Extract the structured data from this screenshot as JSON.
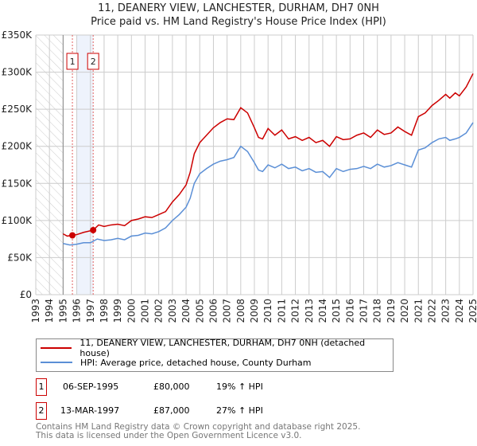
{
  "chart_data": {
    "type": "line",
    "title": "11, DEANERY VIEW, LANCHESTER, DURHAM, DH7 0NH",
    "subtitle": "Price paid vs. HM Land Registry's House Price Index (HPI)",
    "xlim": [
      1993,
      2025
    ],
    "ylim": [
      0,
      350000
    ],
    "x_ticks": [
      "1993",
      "1994",
      "1995",
      "1996",
      "1997",
      "1998",
      "1999",
      "2000",
      "2001",
      "2002",
      "2003",
      "2004",
      "2005",
      "2006",
      "2007",
      "2008",
      "2009",
      "2010",
      "2011",
      "2012",
      "2013",
      "2014",
      "2015",
      "2016",
      "2017",
      "2018",
      "2019",
      "2020",
      "2021",
      "2022",
      "2023",
      "2024",
      "2025"
    ],
    "y_ticks": [
      {
        "v": 0,
        "label": "£0"
      },
      {
        "v": 50000,
        "label": "£50K"
      },
      {
        "v": 100000,
        "label": "£100K"
      },
      {
        "v": 150000,
        "label": "£150K"
      },
      {
        "v": 200000,
        "label": "£200K"
      },
      {
        "v": 250000,
        "label": "£250K"
      },
      {
        "v": 300000,
        "label": "£300K"
      },
      {
        "v": 350000,
        "label": "£350K"
      }
    ],
    "grid": true,
    "hatched_range": [
      1993,
      1995
    ],
    "shaded_range": [
      1996,
      1997.2
    ],
    "series": [
      {
        "name": "11, DEANERY VIEW, LANCHESTER, DURHAM, DH7 0NH (detached house)",
        "color": "#cc0000",
        "x": [
          1995,
          1995.3,
          1995.68,
          1996,
          1996.5,
          1997.2,
          1997.6,
          1998,
          1998.5,
          1999,
          1999.5,
          2000,
          2000.5,
          2001,
          2001.5,
          2002,
          2002.5,
          2003,
          2003.5,
          2004,
          2004.3,
          2004.6,
          2005,
          2005.5,
          2006,
          2006.5,
          2007,
          2007.5,
          2008,
          2008.5,
          2009,
          2009.3,
          2009.6,
          2010,
          2010.5,
          2011,
          2011.5,
          2012,
          2012.5,
          2013,
          2013.5,
          2014,
          2014.5,
          2015,
          2015.5,
          2016,
          2016.5,
          2017,
          2017.5,
          2018,
          2018.5,
          2019,
          2019.5,
          2020,
          2020.5,
          2021,
          2021.5,
          2022,
          2022.5,
          2023,
          2023.3,
          2023.7,
          2024,
          2024.5,
          2025
        ],
        "y": [
          82000,
          79000,
          80000,
          81000,
          84000,
          87000,
          94000,
          92000,
          94000,
          95000,
          93000,
          100000,
          102000,
          105000,
          104000,
          108000,
          112000,
          125000,
          135000,
          148000,
          165000,
          190000,
          205000,
          215000,
          225000,
          232000,
          237000,
          236000,
          252000,
          245000,
          225000,
          212000,
          210000,
          224000,
          215000,
          222000,
          210000,
          213000,
          208000,
          212000,
          205000,
          208000,
          200000,
          213000,
          209000,
          210000,
          215000,
          218000,
          212000,
          222000,
          216000,
          218000,
          226000,
          220000,
          215000,
          240000,
          245000,
          255000,
          262000,
          270000,
          265000,
          272000,
          268000,
          280000,
          298000
        ]
      },
      {
        "name": "HPI: Average price, detached house, County Durham",
        "color": "#5b8fd6",
        "x": [
          1995,
          1995.5,
          1996,
          1996.5,
          1997,
          1997.5,
          1998,
          1998.5,
          1999,
          1999.5,
          2000,
          2000.5,
          2001,
          2001.5,
          2002,
          2002.5,
          2003,
          2003.5,
          2004,
          2004.3,
          2004.6,
          2005,
          2005.5,
          2006,
          2006.5,
          2007,
          2007.5,
          2008,
          2008.5,
          2009,
          2009.3,
          2009.6,
          2010,
          2010.5,
          2011,
          2011.5,
          2012,
          2012.5,
          2013,
          2013.5,
          2014,
          2014.5,
          2015,
          2015.5,
          2016,
          2016.5,
          2017,
          2017.5,
          2018,
          2018.5,
          2019,
          2019.5,
          2020,
          2020.5,
          2021,
          2021.5,
          2022,
          2022.5,
          2023,
          2023.3,
          2023.7,
          2024,
          2024.5,
          2025
        ],
        "y": [
          69000,
          67000,
          68000,
          70000,
          70000,
          75000,
          73000,
          74000,
          76000,
          74000,
          79000,
          80000,
          83000,
          82000,
          85000,
          90000,
          100000,
          108000,
          118000,
          130000,
          150000,
          163000,
          170000,
          176000,
          180000,
          182000,
          185000,
          200000,
          193000,
          178000,
          168000,
          166000,
          175000,
          171000,
          176000,
          170000,
          172000,
          167000,
          170000,
          165000,
          166000,
          158000,
          170000,
          166000,
          169000,
          170000,
          173000,
          170000,
          176000,
          172000,
          174000,
          178000,
          175000,
          172000,
          195000,
          198000,
          205000,
          210000,
          212000,
          208000,
          210000,
          212000,
          218000,
          232000
        ]
      }
    ],
    "sales": [
      {
        "label": "1",
        "x": 1995.68,
        "y": 80000
      },
      {
        "label": "2",
        "x": 1997.2,
        "y": 87000
      }
    ]
  },
  "header": {
    "title": "11, DEANERY VIEW, LANCHESTER, DURHAM, DH7 0NH",
    "subtitle": "Price paid vs. HM Land Registry's House Price Index (HPI)"
  },
  "legend": {
    "red": "11, DEANERY VIEW, LANCHESTER, DURHAM, DH7 0NH (detached house)",
    "blue": "HPI: Average price, detached house, County Durham"
  },
  "transactions": [
    {
      "num": "1",
      "date": "06-SEP-1995",
      "price": "£80,000",
      "hpi": "19% ↑ HPI"
    },
    {
      "num": "2",
      "date": "13-MAR-1997",
      "price": "£87,000",
      "hpi": "27% ↑ HPI"
    }
  ],
  "footer": {
    "line1": "Contains HM Land Registry data © Crown copyright and database right 2025.",
    "line2": "This data is licensed under the Open Government Licence v3.0."
  }
}
